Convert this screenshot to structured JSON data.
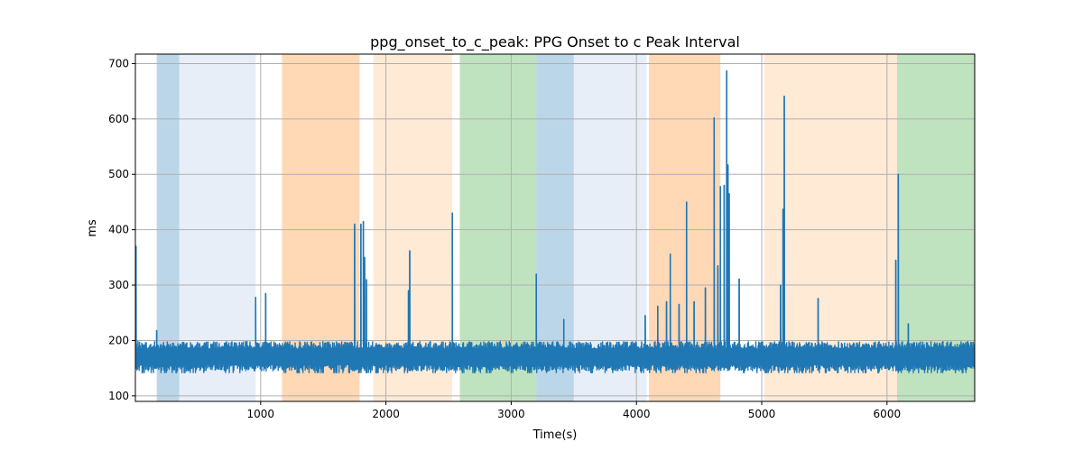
{
  "chart_data": {
    "type": "line",
    "title": "ppg_onset_to_c_peak: PPG Onset to c Peak Interval",
    "xlabel": "Time(s)",
    "ylabel": "ms",
    "xlim": [
      0,
      6700
    ],
    "ylim": [
      90,
      717
    ],
    "xticks": [
      1000,
      2000,
      3000,
      4000,
      5000,
      6000
    ],
    "yticks": [
      100,
      200,
      300,
      400,
      500,
      600,
      700
    ],
    "grid": true,
    "line_color": "#1f77b4",
    "bands": [
      {
        "x0": 170,
        "x1": 350,
        "color": "#1f77b4",
        "alpha": 0.3
      },
      {
        "x0": 350,
        "x1": 960,
        "color": "#aec7e8",
        "alpha": 0.3
      },
      {
        "x0": 1170,
        "x1": 1790,
        "color": "#ff7f0e",
        "alpha": 0.3
      },
      {
        "x0": 1900,
        "x1": 2530,
        "color": "#ffbb78",
        "alpha": 0.3
      },
      {
        "x0": 2590,
        "x1": 3200,
        "color": "#2ca02c",
        "alpha": 0.3
      },
      {
        "x0": 3200,
        "x1": 3500,
        "color": "#1f77b4",
        "alpha": 0.3
      },
      {
        "x0": 3500,
        "x1": 4080,
        "color": "#aec7e8",
        "alpha": 0.3
      },
      {
        "x0": 4100,
        "x1": 4670,
        "color": "#ff7f0e",
        "alpha": 0.3
      },
      {
        "x0": 5020,
        "x1": 6080,
        "color": "#ffbb78",
        "alpha": 0.3
      },
      {
        "x0": 6080,
        "x1": 6700,
        "color": "#2ca02c",
        "alpha": 0.3
      }
    ],
    "baseline": {
      "low": 150,
      "high": 192
    },
    "spikes": [
      {
        "x": 5,
        "y": 370
      },
      {
        "x": 170,
        "y": 218
      },
      {
        "x": 960,
        "y": 278
      },
      {
        "x": 1040,
        "y": 285
      },
      {
        "x": 1750,
        "y": 410
      },
      {
        "x": 1800,
        "y": 410
      },
      {
        "x": 1820,
        "y": 415
      },
      {
        "x": 1830,
        "y": 350
      },
      {
        "x": 1845,
        "y": 310
      },
      {
        "x": 2180,
        "y": 290
      },
      {
        "x": 2190,
        "y": 362
      },
      {
        "x": 2530,
        "y": 430
      },
      {
        "x": 3200,
        "y": 320
      },
      {
        "x": 3420,
        "y": 238
      },
      {
        "x": 4070,
        "y": 245
      },
      {
        "x": 4170,
        "y": 262
      },
      {
        "x": 4240,
        "y": 270
      },
      {
        "x": 4270,
        "y": 356
      },
      {
        "x": 4340,
        "y": 265
      },
      {
        "x": 4400,
        "y": 450
      },
      {
        "x": 4460,
        "y": 270
      },
      {
        "x": 4550,
        "y": 295
      },
      {
        "x": 4620,
        "y": 602
      },
      {
        "x": 4650,
        "y": 335
      },
      {
        "x": 4670,
        "y": 478
      },
      {
        "x": 4700,
        "y": 480
      },
      {
        "x": 4720,
        "y": 687
      },
      {
        "x": 4730,
        "y": 517
      },
      {
        "x": 4740,
        "y": 465
      },
      {
        "x": 4820,
        "y": 311
      },
      {
        "x": 5150,
        "y": 300
      },
      {
        "x": 5170,
        "y": 437
      },
      {
        "x": 5180,
        "y": 641
      },
      {
        "x": 5450,
        "y": 276
      },
      {
        "x": 6070,
        "y": 345
      },
      {
        "x": 6090,
        "y": 500
      },
      {
        "x": 6170,
        "y": 230
      }
    ]
  }
}
